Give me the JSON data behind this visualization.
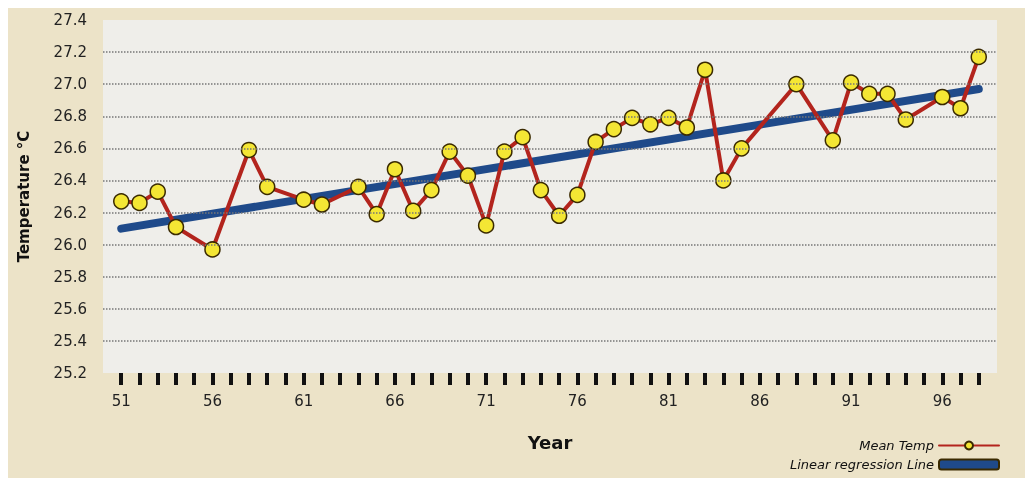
{
  "chart_data": {
    "type": "line",
    "xlabel": "Year",
    "ylabel": "Temperature °C",
    "xlim": [
      50,
      99
    ],
    "xticks": [
      {
        "value": 51,
        "label": "51"
      },
      {
        "value": 52,
        "label": null
      },
      {
        "value": 53,
        "label": null
      },
      {
        "value": 54,
        "label": null
      },
      {
        "value": 55,
        "label": null
      },
      {
        "value": 56,
        "label": "56"
      },
      {
        "value": 57,
        "label": null
      },
      {
        "value": 58,
        "label": null
      },
      {
        "value": 59,
        "label": null
      },
      {
        "value": 60,
        "label": null
      },
      {
        "value": 61,
        "label": "61"
      },
      {
        "value": 62,
        "label": null
      },
      {
        "value": 63,
        "label": null
      },
      {
        "value": 64,
        "label": null
      },
      {
        "value": 65,
        "label": null
      },
      {
        "value": 66,
        "label": "66"
      },
      {
        "value": 67,
        "label": null
      },
      {
        "value": 68,
        "label": null
      },
      {
        "value": 69,
        "label": null
      },
      {
        "value": 70,
        "label": null
      },
      {
        "value": 71,
        "label": "71"
      },
      {
        "value": 72,
        "label": null
      },
      {
        "value": 73,
        "label": null
      },
      {
        "value": 74,
        "label": null
      },
      {
        "value": 75,
        "label": null
      },
      {
        "value": 76,
        "label": "76"
      },
      {
        "value": 77,
        "label": null
      },
      {
        "value": 78,
        "label": null
      },
      {
        "value": 79,
        "label": null
      },
      {
        "value": 80,
        "label": null
      },
      {
        "value": 81,
        "label": "81"
      },
      {
        "value": 82,
        "label": null
      },
      {
        "value": 83,
        "label": null
      },
      {
        "value": 84,
        "label": null
      },
      {
        "value": 85,
        "label": null
      },
      {
        "value": 86,
        "label": "86"
      },
      {
        "value": 87,
        "label": null
      },
      {
        "value": 88,
        "label": null
      },
      {
        "value": 89,
        "label": null
      },
      {
        "value": 90,
        "label": null
      },
      {
        "value": 91,
        "label": "91"
      },
      {
        "value": 92,
        "label": null
      },
      {
        "value": 93,
        "label": null
      },
      {
        "value": 94,
        "label": null
      },
      {
        "value": 95,
        "label": null
      },
      {
        "value": 96,
        "label": "96"
      },
      {
        "value": 97,
        "label": null
      },
      {
        "value": 98,
        "label": null
      }
    ],
    "ylim": [
      25.2,
      27.4
    ],
    "yticks": [
      25.2,
      25.4,
      25.6,
      25.8,
      {
        "value": 26,
        "label": "26.0"
      },
      26.2,
      26.4,
      26.6,
      26.8,
      {
        "value": 27,
        "label": "27.0"
      },
      27.2,
      27.4
    ],
    "grid": "y",
    "legend": "bottom right",
    "series": [
      {
        "name": "Mean Temp",
        "color": "#b3241d",
        "marker": "circle",
        "x": [
          51,
          52,
          53,
          54,
          56,
          58,
          59,
          61,
          62,
          64,
          65,
          66,
          67,
          68,
          69,
          70,
          71,
          72,
          73,
          74,
          75,
          76,
          77,
          78,
          79,
          80,
          81,
          82,
          83,
          84,
          85,
          88,
          90,
          91,
          92,
          93,
          94,
          96,
          97,
          98
        ],
        "values": [
          26.27,
          26.26,
          26.33,
          26.11,
          25.97,
          26.59,
          26.36,
          26.28,
          26.25,
          26.36,
          26.19,
          26.47,
          26.21,
          26.34,
          26.58,
          26.43,
          26.12,
          26.58,
          26.67,
          26.34,
          26.18,
          26.31,
          26.64,
          26.72,
          26.79,
          26.75,
          26.79,
          26.73,
          27.09,
          26.4,
          26.6,
          27.0,
          26.65,
          27.01,
          26.94,
          26.94,
          26.78,
          26.92,
          26.85,
          27.17
        ]
      },
      {
        "name": "Linear regression Line",
        "type": "line",
        "color": "#1f4a8a",
        "marker": "none",
        "x": [
          51,
          98
        ],
        "values": [
          26.1,
          26.97
        ]
      }
    ]
  }
}
